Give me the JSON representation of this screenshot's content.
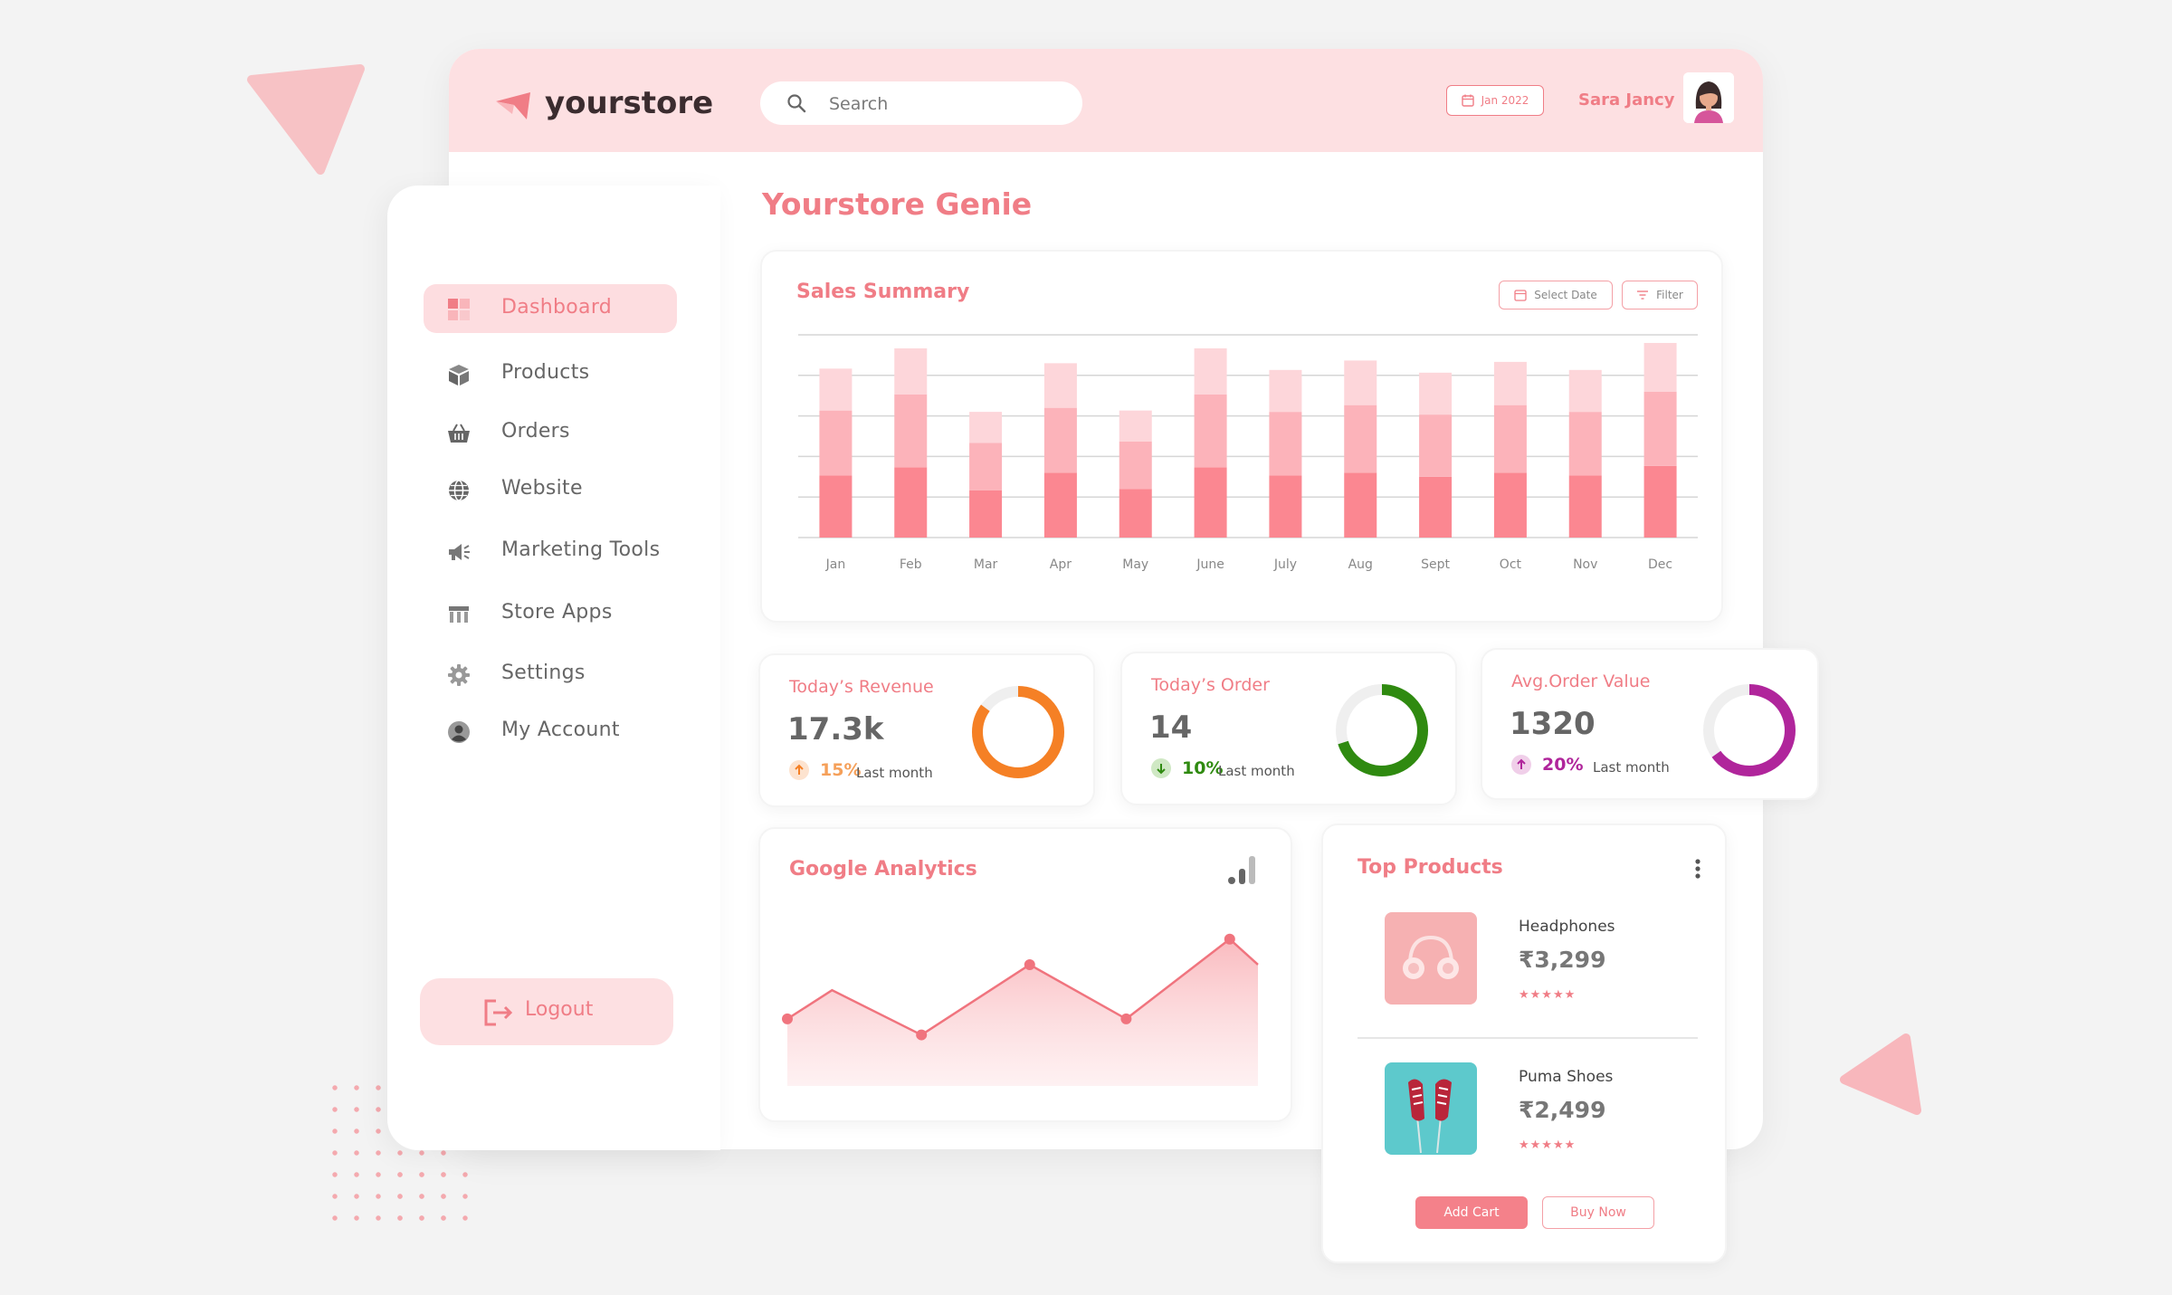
{
  "brand": {
    "name": "yourstore"
  },
  "search": {
    "placeholder": "Search"
  },
  "header": {
    "date_label": "Jan 2022",
    "user_name": "Sara Jancy"
  },
  "page": {
    "title": "Yourstore Genie"
  },
  "sidebar": {
    "items": [
      {
        "label": "Dashboard",
        "icon": "dashboard-icon",
        "active": true
      },
      {
        "label": "Products",
        "icon": "box-icon"
      },
      {
        "label": "Orders",
        "icon": "basket-icon"
      },
      {
        "label": "Website",
        "icon": "globe-icon"
      },
      {
        "label": "Marketing Tools",
        "icon": "megaphone-icon"
      },
      {
        "label": "Store Apps",
        "icon": "store-icon"
      },
      {
        "label": "Settings",
        "icon": "gear-icon"
      },
      {
        "label": "My Account",
        "icon": "user-icon"
      }
    ],
    "logout_label": "Logout"
  },
  "sales_summary": {
    "title": "Sales Summary",
    "select_date_label": "Select Date",
    "filter_label": "Filter"
  },
  "chart_data": {
    "type": "bar",
    "stacked": true,
    "title": "Sales Summary",
    "categories": [
      "Jan",
      "Feb",
      "Mar",
      "Apr",
      "May",
      "June",
      "July",
      "Aug",
      "Sept",
      "Oct",
      "Nov",
      "Dec"
    ],
    "series": [
      {
        "color": "#fb8791",
        "values": [
          46,
          52,
          35,
          48,
          36,
          52,
          46,
          48,
          45,
          48,
          46,
          53
        ]
      },
      {
        "color": "#fcb3ba",
        "values": [
          48,
          54,
          35,
          48,
          35,
          54,
          47,
          50,
          46,
          50,
          47,
          55
        ]
      },
      {
        "color": "#fdd6da",
        "values": [
          31,
          34,
          23,
          33,
          23,
          34,
          31,
          33,
          31,
          32,
          31,
          36
        ]
      }
    ],
    "ylim": [
      0,
      150
    ],
    "gridlines": 5,
    "grid": true
  },
  "stats": [
    {
      "title": "Today’s Revenue",
      "value": "17.3k",
      "pct": "15%",
      "note": "Last month",
      "color": "#f58025",
      "pct_color": "#f5a05a",
      "arrow_bg": "#fde3cf",
      "arrow": "up",
      "ring": 0.85
    },
    {
      "title": "Today’s Order",
      "value": "14",
      "pct": "10%",
      "note": "Last month",
      "color": "#2f8a10",
      "pct_color": "#2f8a10",
      "arrow_bg": "#cfe8c4",
      "arrow": "down",
      "ring": 0.7
    },
    {
      "title": "Avg.Order Value",
      "value": "1320",
      "pct": "20%",
      "note": "Last month",
      "color": "#b0259b",
      "pct_color": "#b0259b",
      "arrow_bg": "#f0cfe9",
      "arrow": "up",
      "ring": 0.65
    }
  ],
  "analytics": {
    "title": "Google Analytics",
    "icon": "analytics-icon",
    "values": [
      21,
      30,
      16,
      38,
      21,
      46,
      38
    ],
    "ylim": [
      0,
      55
    ]
  },
  "top_products": {
    "title": "Top Products",
    "items": [
      {
        "name": "Headphones",
        "price": "₹3,299",
        "stars": "★★★★★"
      },
      {
        "name": "Puma Shoes",
        "price": "₹2,499",
        "stars": "★★★★★"
      }
    ],
    "add_cart_label": "Add Cart",
    "buy_now_label": "Buy Now"
  }
}
